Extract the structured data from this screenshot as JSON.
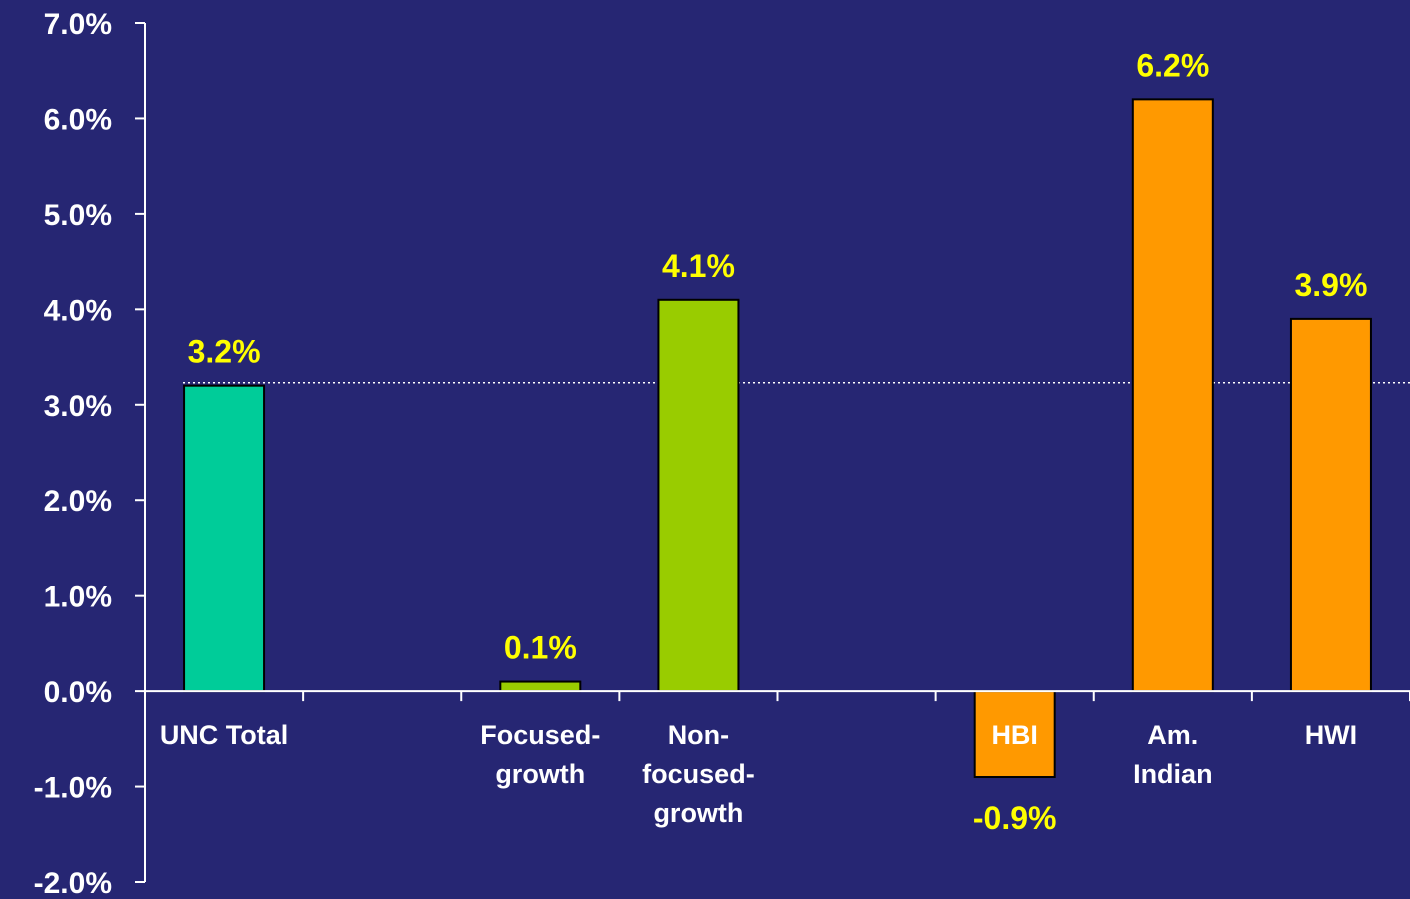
{
  "chart_data": {
    "type": "bar",
    "categories": [
      "UNC Total",
      "",
      "Focused-growth",
      "Non-focused-growth",
      "",
      "HBI",
      "Am. Indian",
      "HWI"
    ],
    "category_label_lines": [
      [
        "UNC Total"
      ],
      [],
      [
        "Focused-",
        "growth"
      ],
      [
        "Non-",
        "focused-",
        "growth"
      ],
      [],
      [
        "HBI"
      ],
      [
        "Am.",
        "Indian"
      ],
      [
        "HWI"
      ]
    ],
    "values": [
      3.2,
      null,
      0.1,
      4.1,
      null,
      -0.9,
      6.2,
      3.9
    ],
    "data_labels": [
      "3.2%",
      "",
      "0.1%",
      "4.1%",
      "",
      "-0.9%",
      "6.2%",
      "3.9%"
    ],
    "bar_colors": [
      "#00cc99",
      "",
      "#99cc00",
      "#99cc00",
      "",
      "#ff9900",
      "#ff9900",
      "#ff9900"
    ],
    "ylim": [
      -2.0,
      7.0
    ],
    "yticks": [
      7.0,
      6.0,
      5.0,
      4.0,
      3.0,
      2.0,
      1.0,
      0.0,
      -1.0,
      -2.0
    ],
    "ytick_labels": [
      "7.0%",
      "6.0%",
      "5.0%",
      "4.0%",
      "3.0%",
      "2.0%",
      "1.0%",
      "0.0%",
      "-1.0%",
      "-2.0%"
    ],
    "reference_line": {
      "value": 3.2,
      "style": "dotted",
      "color": "#ffffff"
    },
    "title": "",
    "xlabel": "",
    "ylabel": "",
    "grid": false,
    "legend": "none"
  },
  "colors": {
    "background": "#262673",
    "axis": "#ffffff",
    "tick_text": "#ffffff",
    "data_label_text": "#ffff00"
  }
}
